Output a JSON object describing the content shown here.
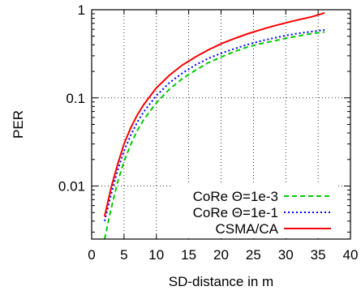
{
  "chart_data": {
    "type": "line",
    "title": "",
    "xlabel": "SD-distance in m",
    "ylabel": "PER",
    "xlim": [
      0,
      40
    ],
    "ylim": [
      0.0025,
      1
    ],
    "yscale": "log",
    "grid": true,
    "legend_position": "bottom-right",
    "x_ticks": [
      0,
      5,
      10,
      15,
      20,
      25,
      30,
      35,
      40
    ],
    "y_ticks": [
      {
        "value": 0.01,
        "label": "0.01"
      },
      {
        "value": 0.1,
        "label": "0.1"
      },
      {
        "value": 1,
        "label": "1"
      }
    ],
    "series": [
      {
        "name": "CoRe Θ=1e-3",
        "color": "#00cc00",
        "dash": "6 4",
        "x": [
          2,
          3,
          4,
          5,
          6,
          7,
          8,
          10,
          12,
          14,
          16,
          18,
          20,
          22,
          24,
          26,
          28,
          30,
          32,
          34,
          36
        ],
        "y": [
          0.0025,
          0.0055,
          0.011,
          0.019,
          0.029,
          0.042,
          0.056,
          0.088,
          0.125,
          0.165,
          0.205,
          0.25,
          0.29,
          0.335,
          0.375,
          0.41,
          0.44,
          0.475,
          0.505,
          0.535,
          0.56
        ]
      },
      {
        "name": "CoRe Θ=1e-1",
        "color": "#0000ff",
        "dash": "2 3",
        "x": [
          2,
          3,
          4,
          5,
          6,
          7,
          8,
          10,
          12,
          14,
          16,
          18,
          20,
          22,
          24,
          26,
          28,
          30,
          32,
          34,
          36
        ],
        "y": [
          0.004,
          0.008,
          0.015,
          0.025,
          0.037,
          0.052,
          0.069,
          0.106,
          0.148,
          0.19,
          0.235,
          0.28,
          0.32,
          0.36,
          0.4,
          0.44,
          0.475,
          0.51,
          0.54,
          0.565,
          0.59
        ]
      },
      {
        "name": "CSMA/CA",
        "color": "#ff0000",
        "dash": "",
        "x": [
          2,
          3,
          4,
          5,
          6,
          7,
          8,
          10,
          12,
          14,
          16,
          18,
          20,
          22,
          24,
          26,
          28,
          30,
          32,
          34,
          36
        ],
        "y": [
          0.0045,
          0.0095,
          0.0175,
          0.03,
          0.045,
          0.063,
          0.083,
          0.13,
          0.18,
          0.235,
          0.29,
          0.35,
          0.41,
          0.47,
          0.53,
          0.59,
          0.65,
          0.71,
          0.77,
          0.83,
          0.92
        ]
      }
    ]
  }
}
